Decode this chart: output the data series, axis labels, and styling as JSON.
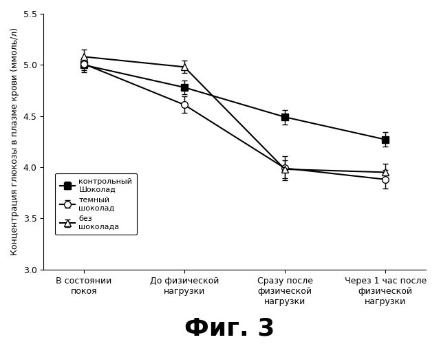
{
  "x_positions": [
    0,
    1,
    2,
    3
  ],
  "x_labels": [
    "В состоянии\nпокоя",
    "До физической\nнагрузки",
    "Сразу после\nфизической\nнагрузки",
    "Через 1 час после\nфизической\nnагрузки"
  ],
  "series": [
    {
      "name": "контрольный\nШоколад",
      "y": [
        5.0,
        4.78,
        4.49,
        4.27
      ],
      "yerr": [
        0.07,
        0.07,
        0.07,
        0.07
      ],
      "marker": "s",
      "marker_face": "black",
      "marker_edge": "black",
      "linestyle": "-",
      "color": "black",
      "markersize": 7
    },
    {
      "name": "темный\nшоколад",
      "y": [
        5.01,
        4.61,
        3.99,
        3.88
      ],
      "yerr": [
        0.06,
        0.08,
        0.12,
        0.09
      ],
      "marker": "o",
      "marker_face": "white",
      "marker_edge": "black",
      "linestyle": "-",
      "color": "black",
      "markersize": 7
    },
    {
      "name": "без\nшоколада",
      "y": [
        5.08,
        4.98,
        3.98,
        3.95
      ],
      "yerr": [
        0.07,
        0.06,
        0.09,
        0.08
      ],
      "marker": "^",
      "marker_face": "white",
      "marker_edge": "black",
      "linestyle": "-",
      "color": "black",
      "markersize": 7
    }
  ],
  "ylim": [
    3.0,
    5.5
  ],
  "yticks": [
    3.0,
    3.5,
    4.0,
    4.5,
    5.0,
    5.5
  ],
  "ylabel": "Концентрация глюкозы в плазме крови (ммоль/л)",
  "fig_label": "Фиг. 3",
  "background_color": "#ffffff",
  "fig_label_fontsize": 26,
  "axis_fontsize": 9,
  "tick_fontsize": 9,
  "legend_fontsize": 8
}
